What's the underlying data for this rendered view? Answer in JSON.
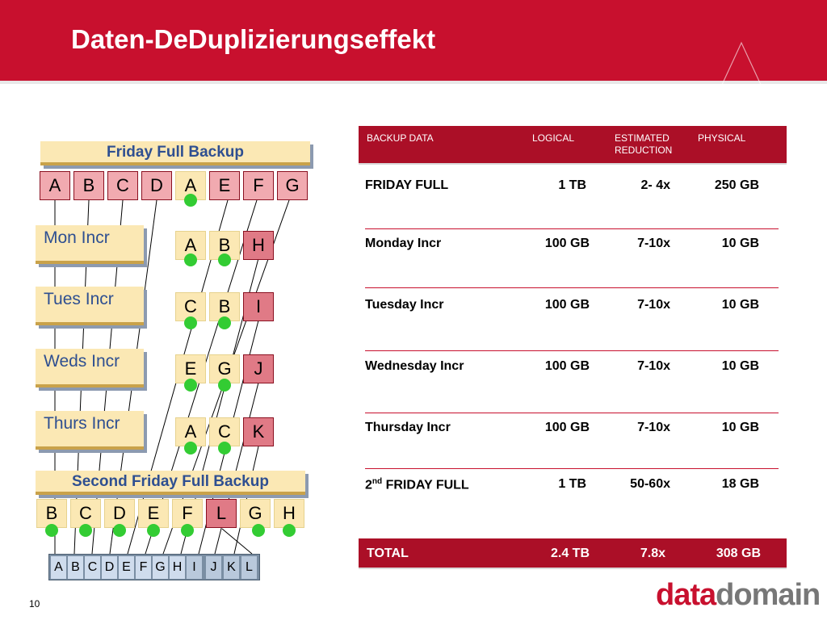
{
  "title": "Daten-DeDuplizierungseffekt",
  "labels": {
    "friday_full": "Friday Full Backup",
    "mon": "Mon Incr",
    "tues": "Tues Incr",
    "weds": "Weds Incr",
    "thurs": "Thurs Incr",
    "second_friday": "Second Friday Full Backup"
  },
  "row_friday": [
    "A",
    "B",
    "C",
    "D",
    "A",
    "E",
    "F",
    "G"
  ],
  "row_mon": [
    "A",
    "B",
    "H"
  ],
  "row_tues": [
    "C",
    "B",
    "I"
  ],
  "row_weds": [
    "E",
    "G",
    "J"
  ],
  "row_thurs": [
    "A",
    "C",
    "K"
  ],
  "row_second": [
    "B",
    "C",
    "D",
    "E",
    "F",
    "L",
    "G",
    "H"
  ],
  "storage": [
    "A",
    "B",
    "C",
    "D",
    "E",
    "F",
    "G",
    "H",
    "I",
    "J",
    "K",
    "L"
  ],
  "table": {
    "headers": [
      "BACKUP DATA",
      "LOGICAL",
      "ESTIMATED REDUCTION",
      "PHYSICAL"
    ],
    "rows": [
      {
        "label": "FRIDAY FULL",
        "logical": "1 TB",
        "reduction": "2- 4x",
        "physical": "250 GB"
      },
      {
        "label": "Monday Incr",
        "logical": "100 GB",
        "reduction": "7-10x",
        "physical": "10 GB"
      },
      {
        "label": "Tuesday Incr",
        "logical": "100 GB",
        "reduction": "7-10x",
        "physical": "10 GB"
      },
      {
        "label": "Wednesday Incr",
        "logical": "100 GB",
        "reduction": "7-10x",
        "physical": "10 GB"
      },
      {
        "label": "Thursday Incr",
        "logical": "100 GB",
        "reduction": "7-10x",
        "physical": "10 GB"
      },
      {
        "label_num": "2",
        "label_sup": "nd",
        "label_rest": " FRIDAY FULL",
        "logical": "1 TB",
        "reduction": "50-60x",
        "physical": "18 GB"
      }
    ],
    "total": {
      "label": "TOTAL",
      "logical": "2.4 TB",
      "reduction": "7.8x",
      "physical": "308 GB"
    }
  },
  "page_number": "10",
  "logo": {
    "part1": "data",
    "part2": "domain"
  },
  "colors": {
    "brand_red": "#c8102e",
    "dot_green": "#33cc33",
    "label_fill": "#fbe8b4"
  }
}
